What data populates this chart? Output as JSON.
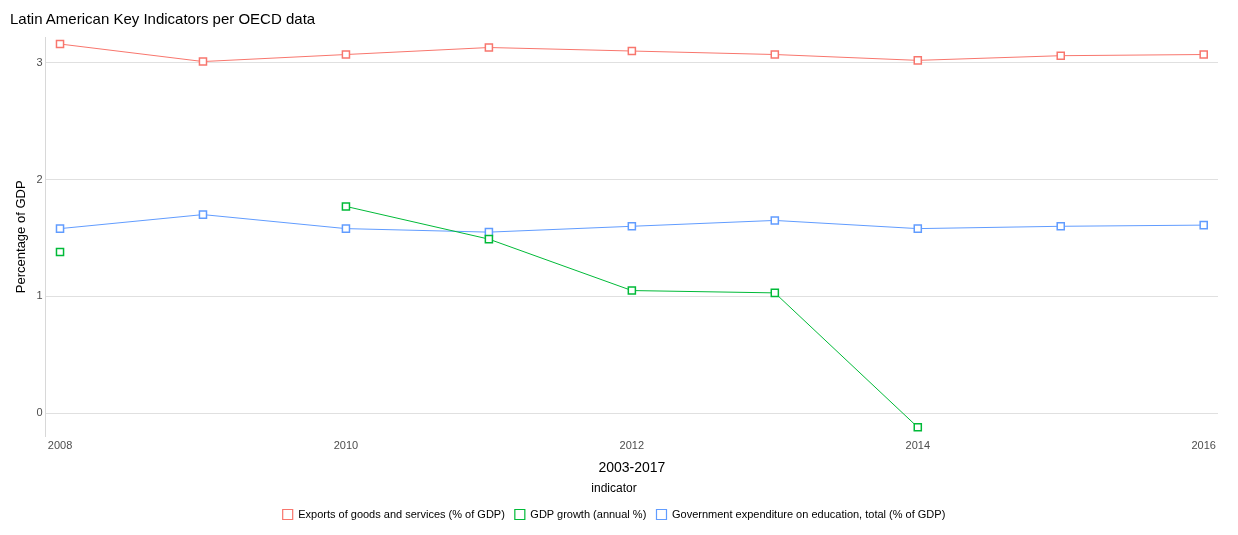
{
  "chart_data": {
    "type": "line",
    "title": "Latin American Key Indicators per OECD data",
    "xlabel": "2003-2017",
    "ylabel": "Percentage of GDP",
    "legend_title": "indicator",
    "x": [
      2008,
      2009,
      2010,
      2011,
      2012,
      2013,
      2014,
      2015,
      2016
    ],
    "series": [
      {
        "name": "Exports of goods and services (% of GDP)",
        "color": "#f8766d",
        "values": [
          3.16,
          3.01,
          3.07,
          3.13,
          3.1,
          3.07,
          3.02,
          3.06,
          3.07
        ]
      },
      {
        "name": "GDP growth (annual %)",
        "color": "#00ba38",
        "values": [
          1.38,
          null,
          1.77,
          1.49,
          1.05,
          1.03,
          -0.12,
          null,
          null
        ]
      },
      {
        "name": "Government expenditure on education, total (% of GDP)",
        "color": "#619cff",
        "values": [
          1.58,
          1.7,
          1.58,
          1.55,
          1.6,
          1.65,
          1.58,
          1.6,
          1.61
        ]
      }
    ],
    "xlim": [
      2007.9,
      2016.1
    ],
    "xticks": [
      2008,
      2010,
      2012,
      2014,
      2016
    ],
    "ylim": [
      -0.2,
      3.22
    ],
    "yticks": [
      0,
      1,
      2,
      3
    ],
    "grid": "y",
    "legend": "bottom",
    "marker": "square",
    "line_style": "solid"
  }
}
